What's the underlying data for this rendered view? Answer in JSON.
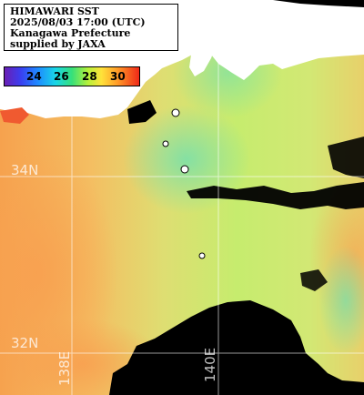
{
  "title": {
    "line1": "HIMAWARI SST",
    "line2": "2025/08/03 17:00 (UTC)",
    "line3": "Kanagawa Prefecture",
    "line4": "supplied by JAXA"
  },
  "color_scale": {
    "ticks": [
      "24",
      "26",
      "28",
      "30"
    ],
    "colors": [
      "#6a1fb4",
      "#1e8cff",
      "#36e07a",
      "#ffe23a",
      "#ff9a28",
      "#f02818"
    ]
  },
  "grid_labels": {
    "lat_34": "34N",
    "lat_32": "32N",
    "lon_138": "138E",
    "lon_140": "140E"
  },
  "colors": {
    "land": "#ffffff",
    "missing": "#000000",
    "grid": "#ffffff",
    "warm_sea": "#f7b060",
    "mid_sea": "#c9e67a",
    "cool_sea": "#7fe0a6"
  }
}
